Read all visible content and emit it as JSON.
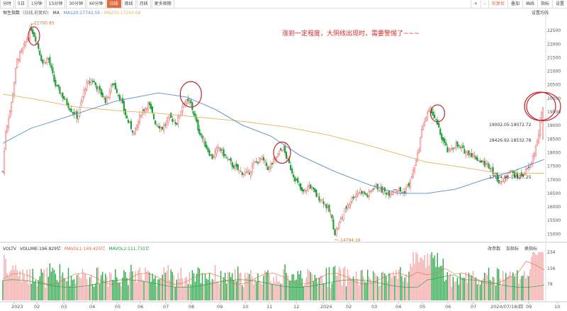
{
  "toolbar": {
    "tabs": [
      "分时",
      "5日",
      "1分钟",
      "15分钟",
      "30分钟",
      "60分钟",
      "日线",
      "周线",
      "月线",
      "更多周期"
    ],
    "active_tab": "日线",
    "right": [
      "+",
      "-",
      "前复权",
      "叠加",
      "画线",
      "指标",
      "设置"
    ]
  },
  "legend": {
    "name": "恒生指数",
    "mode": "(日线,前复权)",
    "ma": "MA",
    "ma120": "MA120:17742.55",
    "ma250": "MA250:17242.68",
    "set_ma": "设置均线"
  },
  "volume_legend": {
    "name": "VOLTV",
    "volume": "VOLUME:196.829亿",
    "mavol1": "MAVOL1:149.425亿",
    "mavol2": "MAVOL2:111.731亿",
    "tools": [
      "改参数",
      "加指标",
      "换指标"
    ]
  },
  "colors": {
    "up": "#e85a5a",
    "down": "#1e9b38",
    "ma120": "#4f8fcd",
    "ma250": "#e3b45a",
    "annotation": "#d62a2a",
    "accent": "#e36a3a"
  },
  "chart_data": {
    "type": "candlestick",
    "annotation": "涨到一定程度，大阴线出现时，需要警惕了~~~",
    "price_labels": [
      "22700.85",
      "14794.16",
      "19002.05-19072.72",
      "18426.92-18532.78",
      "17124.96-17127.25"
    ],
    "y_ticks": [
      22500,
      22000,
      21500,
      21000,
      20500,
      20000,
      19500,
      19000,
      18500,
      18000,
      17500,
      17000,
      16500,
      16000,
      15500,
      15000
    ],
    "ylim": [
      14800,
      23000
    ],
    "x_ticks": [
      "2023",
      "02",
      "03",
      "04",
      "05",
      "06",
      "07",
      "08",
      "09",
      "10",
      "11",
      "12",
      "2024",
      "02",
      "03",
      "04",
      "05",
      "06",
      "07",
      "2024/07/18/四",
      "09",
      "10"
    ],
    "close_path": [
      [
        0,
        17300
      ],
      [
        4,
        18800
      ],
      [
        12,
        19800
      ],
      [
        20,
        21400
      ],
      [
        30,
        21900
      ],
      [
        40,
        22600
      ],
      [
        48,
        22100
      ],
      [
        56,
        21300
      ],
      [
        64,
        21500
      ],
      [
        74,
        20500
      ],
      [
        84,
        20100
      ],
      [
        96,
        19600
      ],
      [
        106,
        19300
      ],
      [
        116,
        20400
      ],
      [
        126,
        20700
      ],
      [
        136,
        20300
      ],
      [
        146,
        19900
      ],
      [
        156,
        20600
      ],
      [
        166,
        20000
      ],
      [
        176,
        19200
      ],
      [
        186,
        18700
      ],
      [
        196,
        19500
      ],
      [
        206,
        19800
      ],
      [
        216,
        19100
      ],
      [
        226,
        18900
      ],
      [
        236,
        19300
      ],
      [
        246,
        19100
      ],
      [
        256,
        19900
      ],
      [
        266,
        19800
      ],
      [
        276,
        18900
      ],
      [
        286,
        18300
      ],
      [
        296,
        17800
      ],
      [
        306,
        18200
      ],
      [
        316,
        17800
      ],
      [
        326,
        17500
      ],
      [
        336,
        17300
      ],
      [
        346,
        17200
      ],
      [
        356,
        17600
      ],
      [
        366,
        17800
      ],
      [
        376,
        17400
      ],
      [
        386,
        17800
      ],
      [
        396,
        18200
      ],
      [
        406,
        17500
      ],
      [
        414,
        17000
      ],
      [
        424,
        16500
      ],
      [
        434,
        16800
      ],
      [
        444,
        16400
      ],
      [
        454,
        16200
      ],
      [
        464,
        15700
      ],
      [
        470,
        15000
      ],
      [
        476,
        15400
      ],
      [
        486,
        16000
      ],
      [
        496,
        16400
      ],
      [
        506,
        16600
      ],
      [
        516,
        16400
      ],
      [
        526,
        16800
      ],
      [
        536,
        16600
      ],
      [
        546,
        16500
      ],
      [
        556,
        16700
      ],
      [
        566,
        16500
      ],
      [
        576,
        16900
      ],
      [
        586,
        17800
      ],
      [
        594,
        19000
      ],
      [
        600,
        19400
      ],
      [
        606,
        19600
      ],
      [
        612,
        19200
      ],
      [
        620,
        18600
      ],
      [
        630,
        18000
      ],
      [
        640,
        18300
      ],
      [
        650,
        18100
      ],
      [
        660,
        18000
      ],
      [
        670,
        17800
      ],
      [
        680,
        17600
      ],
      [
        690,
        17500
      ],
      [
        700,
        17000
      ],
      [
        708,
        16900
      ],
      [
        716,
        17400
      ],
      [
        726,
        17100
      ],
      [
        736,
        17200
      ],
      [
        746,
        17500
      ],
      [
        756,
        18400
      ],
      [
        762,
        19400
      ],
      [
        766,
        19600
      ]
    ],
    "ma120_path": [
      [
        0,
        18350
      ],
      [
        40,
        18900
      ],
      [
        100,
        19400
      ],
      [
        160,
        19900
      ],
      [
        220,
        20200
      ],
      [
        260,
        20050
      ],
      [
        300,
        19600
      ],
      [
        340,
        19000
      ],
      [
        380,
        18600
      ],
      [
        420,
        17900
      ],
      [
        470,
        17300
      ],
      [
        520,
        16800
      ],
      [
        560,
        16500
      ],
      [
        600,
        16500
      ],
      [
        640,
        16650
      ],
      [
        680,
        17000
      ],
      [
        720,
        17300
      ],
      [
        766,
        17750
      ]
    ],
    "ma250_path": [
      [
        0,
        20150
      ],
      [
        40,
        20000
      ],
      [
        100,
        19700
      ],
      [
        160,
        19550
      ],
      [
        220,
        19450
      ],
      [
        280,
        19300
      ],
      [
        340,
        19150
      ],
      [
        400,
        18950
      ],
      [
        460,
        18650
      ],
      [
        520,
        18250
      ],
      [
        560,
        17950
      ],
      [
        600,
        17650
      ],
      [
        640,
        17500
      ],
      [
        700,
        17250
      ],
      [
        766,
        17240
      ]
    ],
    "circles": [
      [
        44,
        22300
      ],
      [
        266,
        20150
      ],
      [
        395,
        18000
      ],
      [
        615,
        19450
      ],
      [
        765,
        19700
      ]
    ]
  }
}
